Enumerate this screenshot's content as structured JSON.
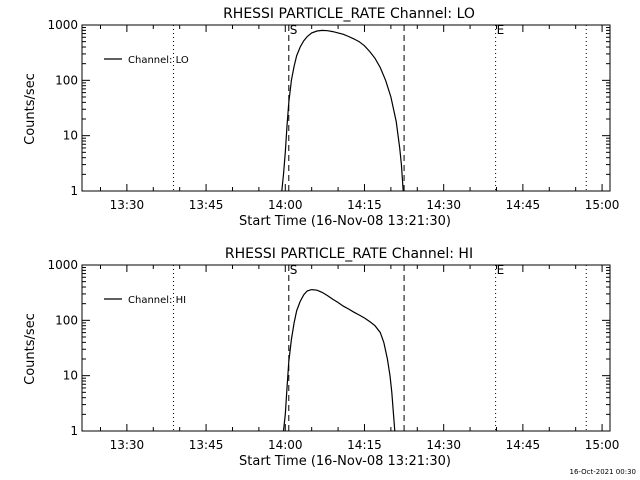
{
  "footer_timestamp": "16-Oct-2021 00:30",
  "chart_data": [
    {
      "type": "line",
      "title": "RHESSI PARTICLE_RATE Channel: LO",
      "xlabel": "Start Time (16-Nov-08 13:21:30)",
      "ylabel": "Counts/sec",
      "yscale": "log",
      "xlim": [
        "13:21:30",
        "15:01:30"
      ],
      "ylim": [
        1,
        1000
      ],
      "x_ticks": [
        "13:30",
        "13:45",
        "14:00",
        "14:15",
        "14:30",
        "14:45",
        "15:00"
      ],
      "y_ticks": [
        "1",
        "10",
        "100",
        "1000"
      ],
      "legend": {
        "label": "Channel: LO",
        "position": "top-left"
      },
      "markers": [
        {
          "label": "S",
          "time": "14:00:40",
          "style": "dashed"
        },
        {
          "label": "",
          "time": "14:22:30",
          "style": "dashed"
        },
        {
          "label": "E",
          "time": "14:39:50",
          "style": "dotted"
        },
        {
          "label": "",
          "time": "13:38:50",
          "style": "dotted"
        },
        {
          "label": "",
          "time": "14:57:00",
          "style": "dotted"
        }
      ],
      "series": [
        {
          "name": "Channel: LO",
          "x": [
            "13:59:20",
            "13:59:40",
            "14:00:00",
            "14:00:20",
            "14:00:40",
            "14:01:10",
            "14:01:40",
            "14:02:10",
            "14:02:50",
            "14:03:30",
            "14:04:10",
            "14:05:00",
            "14:06:00",
            "14:07:00",
            "14:08:00",
            "14:09:00",
            "14:10:00",
            "14:11:00",
            "14:12:00",
            "14:13:00",
            "14:14:00",
            "14:15:00",
            "14:16:00",
            "14:17:00",
            "14:18:00",
            "14:19:00",
            "14:20:00",
            "14:21:00",
            "14:21:40",
            "14:22:00",
            "14:22:20"
          ],
          "y": [
            1,
            2,
            5,
            15,
            40,
            100,
            180,
            280,
            400,
            520,
            620,
            720,
            780,
            800,
            790,
            760,
            720,
            680,
            620,
            560,
            500,
            420,
            330,
            250,
            170,
            100,
            50,
            18,
            6,
            3,
            1
          ]
        }
      ]
    },
    {
      "type": "line",
      "title": "RHESSI PARTICLE_RATE Channel: HI",
      "xlabel": "Start Time (16-Nov-08 13:21:30)",
      "ylabel": "Counts/sec",
      "yscale": "log",
      "xlim": [
        "13:21:30",
        "15:01:30"
      ],
      "ylim": [
        1,
        1000
      ],
      "x_ticks": [
        "13:30",
        "13:45",
        "14:00",
        "14:15",
        "14:30",
        "14:45",
        "15:00"
      ],
      "y_ticks": [
        "1",
        "10",
        "100",
        "1000"
      ],
      "legend": {
        "label": "Channel: HI",
        "position": "top-left"
      },
      "markers": [
        {
          "label": "S",
          "time": "14:00:40",
          "style": "dashed"
        },
        {
          "label": "",
          "time": "14:22:30",
          "style": "dashed"
        },
        {
          "label": "E",
          "time": "14:39:50",
          "style": "dotted"
        },
        {
          "label": "",
          "time": "13:38:50",
          "style": "dotted"
        },
        {
          "label": "",
          "time": "14:57:00",
          "style": "dotted"
        }
      ],
      "series": [
        {
          "name": "Channel: HI",
          "x": [
            "13:59:40",
            "14:00:00",
            "14:00:20",
            "14:00:40",
            "14:01:10",
            "14:01:40",
            "14:02:10",
            "14:02:50",
            "14:03:30",
            "14:04:10",
            "14:05:00",
            "14:06:00",
            "14:07:00",
            "14:08:00",
            "14:09:00",
            "14:10:00",
            "14:11:00",
            "14:12:00",
            "14:13:00",
            "14:14:00",
            "14:15:00",
            "14:16:00",
            "14:17:00",
            "14:18:00",
            "14:18:40",
            "14:19:20",
            "14:19:50",
            "14:20:10",
            "14:20:30",
            "14:20:45"
          ],
          "y": [
            1,
            2,
            6,
            18,
            45,
            90,
            150,
            220,
            290,
            340,
            360,
            350,
            320,
            280,
            240,
            210,
            180,
            160,
            140,
            125,
            110,
            95,
            80,
            60,
            40,
            20,
            10,
            5,
            2,
            1
          ]
        }
      ]
    }
  ]
}
